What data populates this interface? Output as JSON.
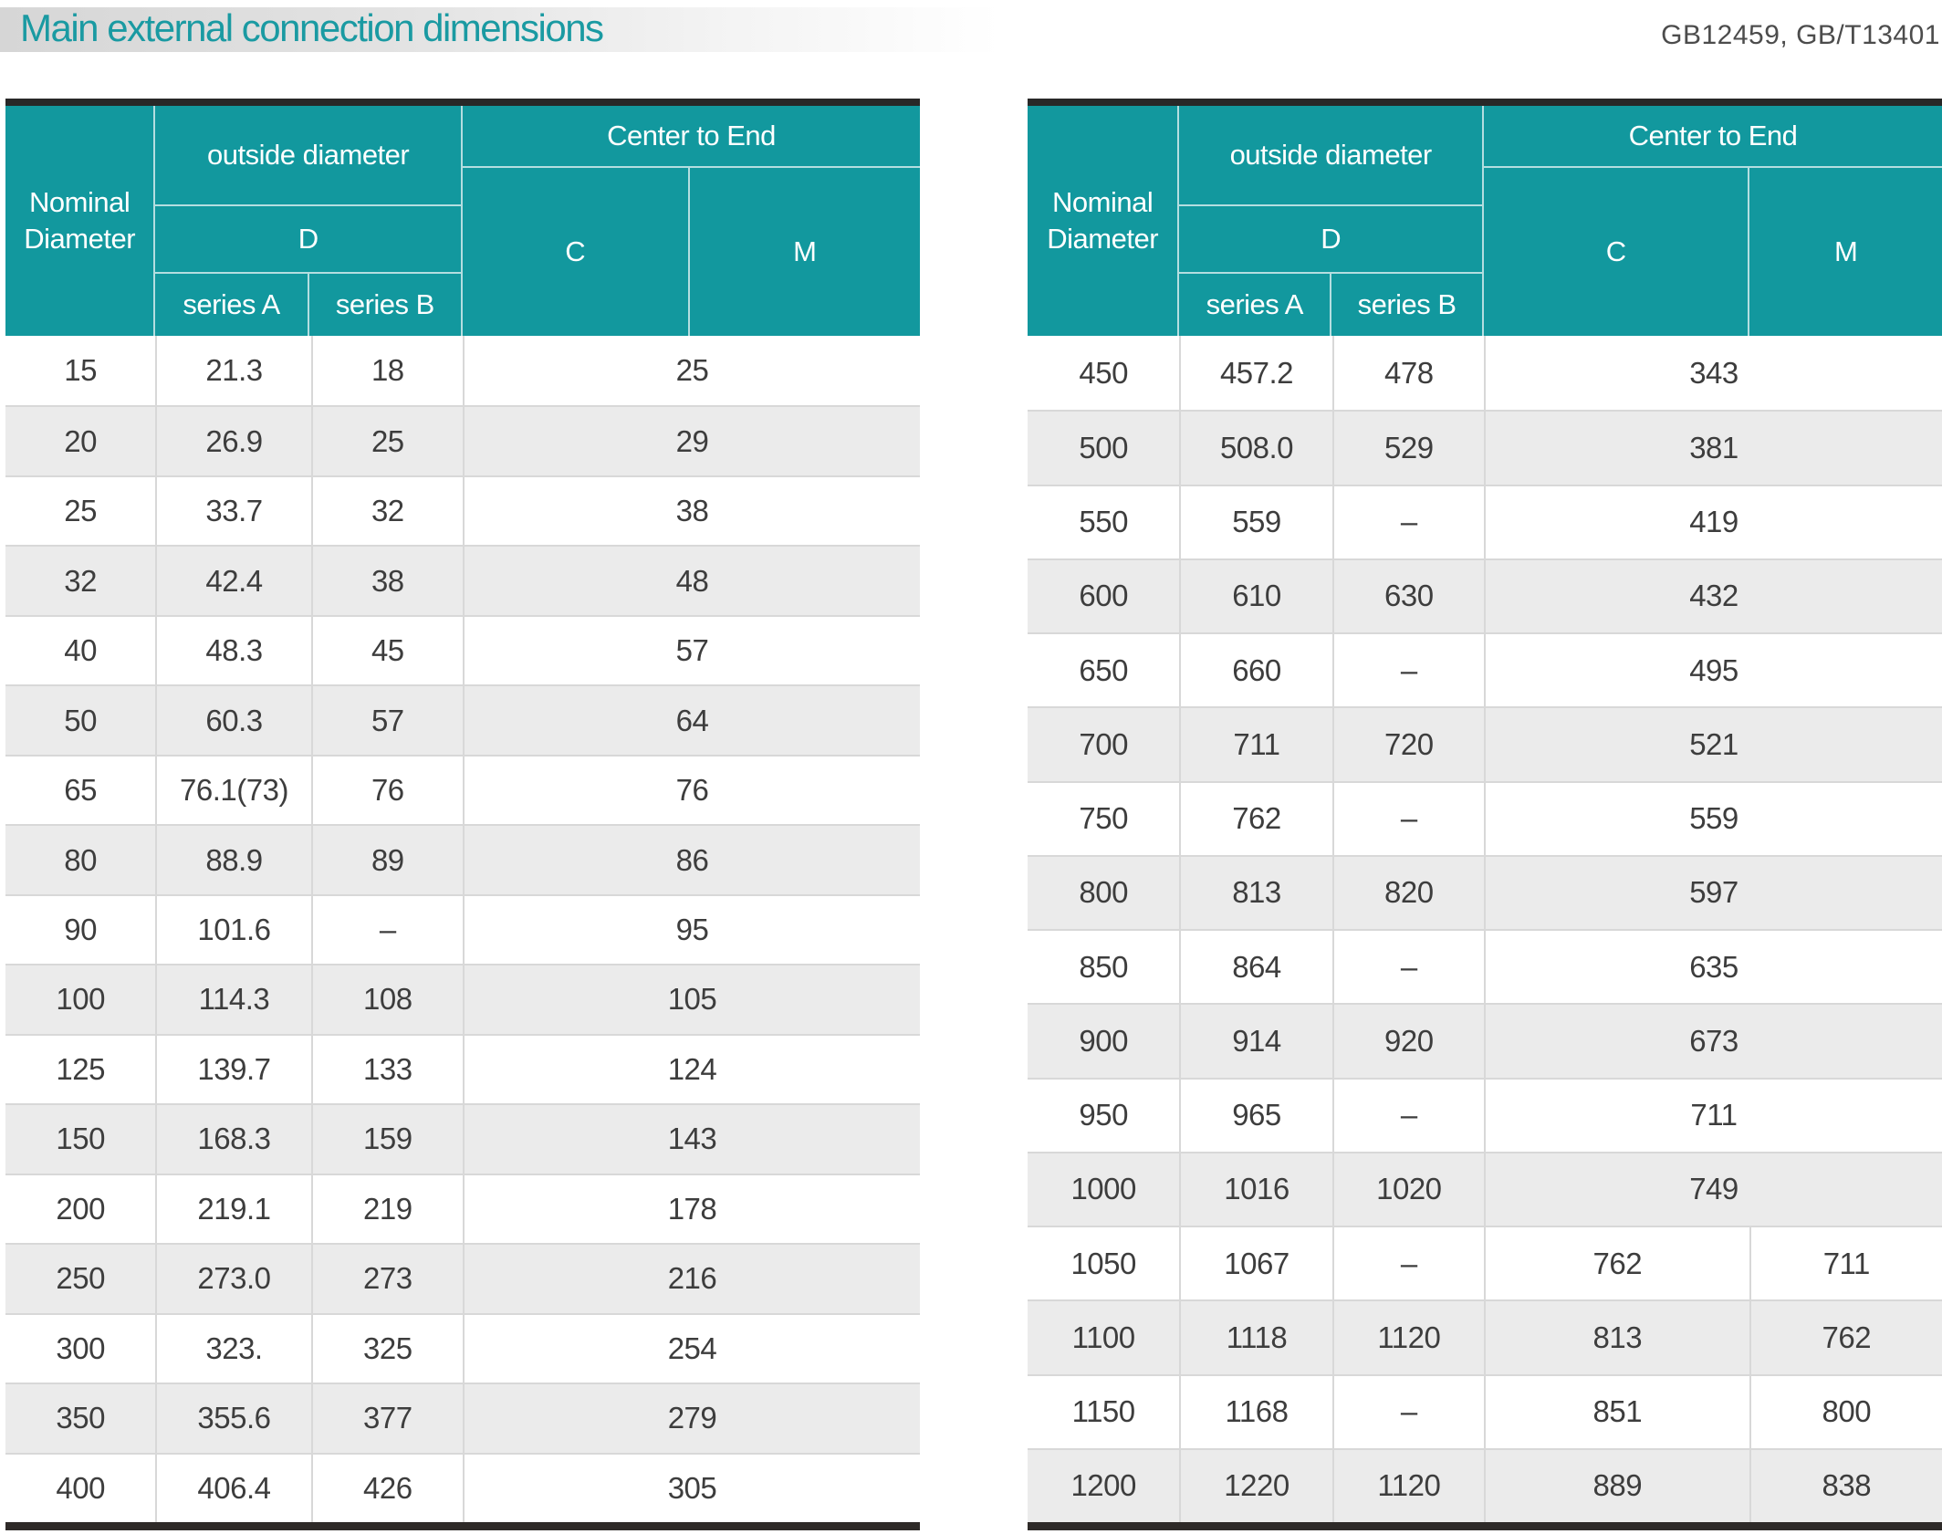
{
  "header": {
    "title": "Main external connection dimensions",
    "standards": "GB12459, GB/T13401"
  },
  "columns": {
    "nominal_diameter": "Nominal Diameter",
    "outside_diameter": "outside diameter",
    "d": "D",
    "series_a": "series A",
    "series_b": "series B",
    "center_to_end": "Center to End",
    "c": "C",
    "m": "M"
  },
  "tables": [
    {
      "id": "left",
      "rows": [
        {
          "dn": "15",
          "a": "21.3",
          "b": "18",
          "cm": "25"
        },
        {
          "dn": "20",
          "a": "26.9",
          "b": "25",
          "cm": "29"
        },
        {
          "dn": "25",
          "a": "33.7",
          "b": "32",
          "cm": "38"
        },
        {
          "dn": "32",
          "a": "42.4",
          "b": "38",
          "cm": "48"
        },
        {
          "dn": "40",
          "a": "48.3",
          "b": "45",
          "cm": "57"
        },
        {
          "dn": "50",
          "a": "60.3",
          "b": "57",
          "cm": "64"
        },
        {
          "dn": "65",
          "a": "76.1(73)",
          "b": "76",
          "cm": "76"
        },
        {
          "dn": "80",
          "a": "88.9",
          "b": "89",
          "cm": "86"
        },
        {
          "dn": "90",
          "a": "101.6",
          "b": "–",
          "cm": "95"
        },
        {
          "dn": "100",
          "a": "114.3",
          "b": "108",
          "cm": "105"
        },
        {
          "dn": "125",
          "a": "139.7",
          "b": "133",
          "cm": "124"
        },
        {
          "dn": "150",
          "a": "168.3",
          "b": "159",
          "cm": "143"
        },
        {
          "dn": "200",
          "a": "219.1",
          "b": "219",
          "cm": "178"
        },
        {
          "dn": "250",
          "a": "273.0",
          "b": "273",
          "cm": "216"
        },
        {
          "dn": "300",
          "a": "323.",
          "b": "325",
          "cm": "254"
        },
        {
          "dn": "350",
          "a": "355.6",
          "b": "377",
          "cm": "279"
        },
        {
          "dn": "400",
          "a": "406.4",
          "b": "426",
          "cm": "305"
        }
      ]
    },
    {
      "id": "right",
      "rows": [
        {
          "dn": "450",
          "a": "457.2",
          "b": "478",
          "cm": "343"
        },
        {
          "dn": "500",
          "a": "508.0",
          "b": "529",
          "cm": "381"
        },
        {
          "dn": "550",
          "a": "559",
          "b": "–",
          "cm": "419"
        },
        {
          "dn": "600",
          "a": "610",
          "b": "630",
          "cm": "432"
        },
        {
          "dn": "650",
          "a": "660",
          "b": "–",
          "cm": "495"
        },
        {
          "dn": "700",
          "a": "711",
          "b": "720",
          "cm": "521"
        },
        {
          "dn": "750",
          "a": "762",
          "b": "–",
          "cm": "559"
        },
        {
          "dn": "800",
          "a": "813",
          "b": "820",
          "cm": "597"
        },
        {
          "dn": "850",
          "a": "864",
          "b": "–",
          "cm": "635"
        },
        {
          "dn": "900",
          "a": "914",
          "b": "920",
          "cm": "673"
        },
        {
          "dn": "950",
          "a": "965",
          "b": "–",
          "cm": "711"
        },
        {
          "dn": "1000",
          "a": "1016",
          "b": "1020",
          "cm": "749"
        },
        {
          "dn": "1050",
          "a": "1067",
          "b": "–",
          "c": "762",
          "m": "711"
        },
        {
          "dn": "1100",
          "a": "1118",
          "b": "1120",
          "c": "813",
          "m": "762"
        },
        {
          "dn": "1150",
          "a": "1168",
          "b": "–",
          "c": "851",
          "m": "800"
        },
        {
          "dn": "1200",
          "a": "1220",
          "b": "1120",
          "c": "889",
          "m": "838"
        }
      ]
    }
  ],
  "colors": {
    "header_teal": "#12989e",
    "title_teal": "#1a9aa2",
    "row_alt_gray": "#ebebeb",
    "dark_border": "#282828",
    "cell_border": "#d8d8d8",
    "body_text": "#3d3d3d"
  }
}
